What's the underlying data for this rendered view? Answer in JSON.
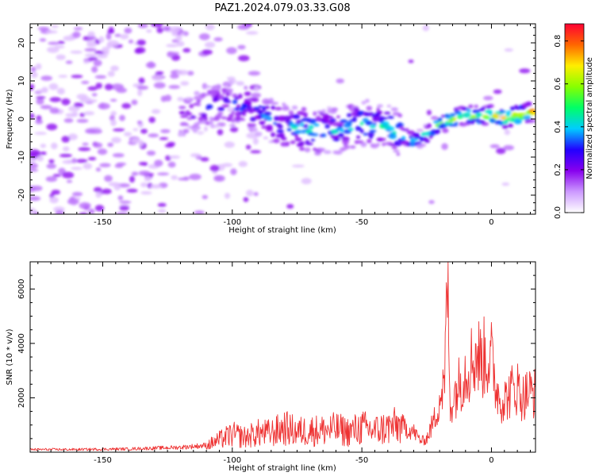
{
  "figure": {
    "title": "PAZ1.2024.079.03.33.G08"
  },
  "chart_data": [
    {
      "type": "heatmap",
      "xlabel": "Height of straight line (km)",
      "ylabel": "Frequency (Hz)",
      "xlim": [
        -178,
        17
      ],
      "ylim": [
        -25,
        25
      ],
      "xticks": [
        -150,
        -100,
        -50,
        0
      ],
      "yticks": [
        -20,
        -10,
        0,
        10,
        20
      ],
      "colorbar": {
        "label": "Normalized spectral amplitude",
        "range": [
          0.0,
          0.88
        ],
        "ticks": [
          0.0,
          0.2,
          0.4,
          0.6,
          0.8
        ],
        "colormap": [
          "#ffffff",
          "#cc99ff",
          "#8800ee",
          "#2200ff",
          "#00ccff",
          "#00ff66",
          "#88ff00",
          "#ffee00",
          "#ff6600",
          "#ff0033"
        ]
      },
      "ridge": {
        "x": [
          -178,
          -160,
          -140,
          -120,
          -110,
          -100,
          -90,
          -80,
          -70,
          -60,
          -50,
          -40,
          -35,
          -30,
          -25,
          -20,
          -10,
          0,
          5,
          10,
          17
        ],
        "y": [
          -1,
          -1,
          -1,
          0,
          3,
          4,
          2,
          -2,
          -3,
          -3,
          -1,
          -2,
          -4,
          -6,
          -4,
          -1,
          1,
          1,
          0,
          1,
          2
        ],
        "peak_amplitude": [
          0.15,
          0.18,
          0.2,
          0.25,
          0.3,
          0.35,
          0.4,
          0.45,
          0.5,
          0.45,
          0.5,
          0.5,
          0.55,
          0.5,
          0.55,
          0.65,
          0.75,
          0.8,
          0.85,
          0.85,
          0.85
        ]
      }
    },
    {
      "type": "line",
      "xlabel": "Height of straight line (km)",
      "ylabel": "SNR (10 * v/v)",
      "xlim": [
        -178,
        17
      ],
      "ylim": [
        0,
        7000
      ],
      "xticks": [
        -150,
        -100,
        -50,
        0
      ],
      "yticks": [
        2000,
        4000,
        6000
      ],
      "series": [
        {
          "color": "#ee3333",
          "x": [
            -178,
            -160,
            -140,
            -120,
            -110,
            -105,
            -100,
            -95,
            -90,
            -85,
            -80,
            -75,
            -70,
            -65,
            -60,
            -55,
            -50,
            -45,
            -40,
            -35,
            -30,
            -27,
            -25,
            -22,
            -20,
            -18,
            -17,
            -16,
            -15,
            -12,
            -10,
            -8,
            -6,
            -4,
            -2,
            0,
            2,
            4,
            6,
            8,
            10,
            12,
            14,
            17
          ],
          "y": [
            100,
            100,
            120,
            180,
            250,
            450,
            650,
            550,
            700,
            700,
            900,
            750,
            800,
            800,
            850,
            750,
            900,
            800,
            900,
            1000,
            750,
            400,
            500,
            1200,
            2000,
            2500,
            6800,
            1500,
            2000,
            2600,
            3000,
            3300,
            3600,
            3400,
            3500,
            3400,
            2300,
            1900,
            2000,
            2300,
            2400,
            2000,
            2200,
            2200
          ]
        }
      ]
    }
  ]
}
